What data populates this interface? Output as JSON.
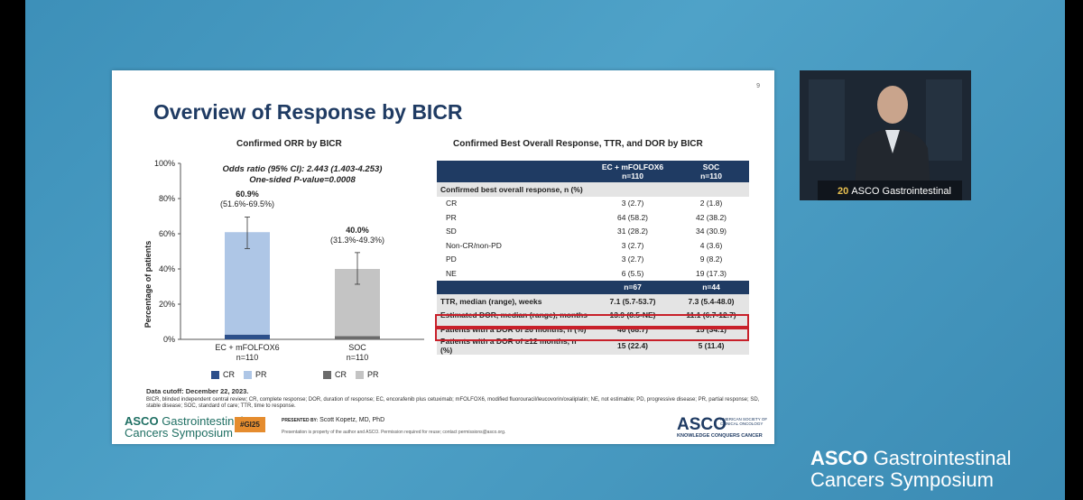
{
  "slide": {
    "number": "9",
    "title": "Overview of Response by BICR"
  },
  "chart_data": {
    "type": "bar",
    "title": "Confirmed ORR by BICR",
    "ylabel": "Percentage of patients",
    "ylim": [
      0,
      100
    ],
    "yticks": [
      "0%",
      "20%",
      "40%",
      "60%",
      "80%",
      "100%"
    ],
    "stats_line1": "Odds ratio (95% CI): 2.443 (1.403-4.253)",
    "stats_line2": "One-sided P-value=0.0008",
    "categories": [
      "EC + mFOLFOX6",
      "SOC"
    ],
    "category_n": [
      "n=110",
      "n=110"
    ],
    "totals": [
      60.9,
      40.0
    ],
    "total_labels": [
      "60.9%",
      "40.0%"
    ],
    "ci_labels": [
      "(51.6%-69.5%)",
      "(31.3%-49.3%)"
    ],
    "ci_low": [
      51.6,
      31.3
    ],
    "ci_high": [
      69.5,
      49.3
    ],
    "series": [
      {
        "name": "CR",
        "values": [
          2.7,
          1.8
        ],
        "colors": [
          "#2c4f8a",
          "#6b6b6b"
        ]
      },
      {
        "name": "PR",
        "values": [
          58.2,
          38.2
        ],
        "colors": [
          "#aec6e6",
          "#c4c4c4"
        ]
      }
    ],
    "legend": [
      {
        "items": [
          {
            "label": "CR",
            "color": "#2c4f8a"
          },
          {
            "label": "PR",
            "color": "#aec6e6"
          }
        ]
      },
      {
        "items": [
          {
            "label": "CR",
            "color": "#6b6b6b"
          },
          {
            "label": "PR",
            "color": "#c4c4c4"
          }
        ]
      }
    ]
  },
  "table": {
    "title": "Confirmed Best Overall Response, TTR, and DOR by BICR",
    "col1_line1": "EC + mFOLFOX6",
    "col1_line2": "n=110",
    "col2_line1": "SOC",
    "col2_line2": "n=110",
    "section1": "Confirmed best overall response, n (%)",
    "rows1": [
      {
        "label": "CR",
        "a": "3 (2.7)",
        "b": "2 (1.8)"
      },
      {
        "label": "PR",
        "a": "64 (58.2)",
        "b": "42 (38.2)"
      },
      {
        "label": "SD",
        "a": "31 (28.2)",
        "b": "34 (30.9)"
      },
      {
        "label": "Non-CR/non-PD",
        "a": "3 (2.7)",
        "b": "4 (3.6)"
      },
      {
        "label": "PD",
        "a": "3 (2.7)",
        "b": "9 (8.2)"
      },
      {
        "label": "NE",
        "a": "6 (5.5)",
        "b": "19 (17.3)"
      }
    ],
    "subhead_a": "n=67",
    "subhead_b": "n=44",
    "rows2": [
      {
        "label": "TTR, median (range), weeks",
        "a": "7.1 (5.7-53.7)",
        "b": "7.3 (5.4-48.0)"
      },
      {
        "label": "Estimated DOR, median (range), months",
        "a": "13.9 (8.5-NE)",
        "b": "11.1 (6.7-12.7)"
      },
      {
        "label": "Patients with a DOR of ≥6 months, n (%)",
        "a": "46 (68.7)",
        "b": "15 (34.1)"
      },
      {
        "label": "Patients with a DOR of ≥12 months, n (%)",
        "a": "15 (22.4)",
        "b": "5 (11.4)"
      }
    ]
  },
  "footnote": {
    "cutoff": "Data cutoff: December 22, 2023.",
    "abbrev": "BICR, blinded independent central review; CR, complete response; DOR, duration of response; EC, encorafenib plus cetuximab; mFOLFOX6, modified fluorouracil/leucovorin/oxaliplatin; NE, not estimable; PD, progressive disease; PR, partial response; SD, stable disease; SOC, standard of care; TTR, time to response."
  },
  "footer": {
    "logo_bold": "ASCO",
    "logo_line1": "Gastrointestinal",
    "logo_line2": "Cancers Symposium",
    "hashtag": "#GI25",
    "presented_by": "PRESENTED BY:",
    "presenter": "Scott Kopetz, MD, PhD",
    "notice": "Presentation is property of the author and ASCO. Permission required for reuse; contact permissions@asco.org.",
    "asco": "ASCO",
    "asco_sub1": "AMERICAN SOCIETY OF",
    "asco_sub2": "CLINICAL ONCOLOGY",
    "asco_tag": "KNOWLEDGE CONQUERS CANCER"
  },
  "speaker_feed": {
    "sign_number": "20",
    "sign_text": "ASCO Gastrointestinal"
  },
  "banner": {
    "bold": "ASCO",
    "line1": "Gastrointestinal",
    "line2": "Cancers Symposium"
  }
}
